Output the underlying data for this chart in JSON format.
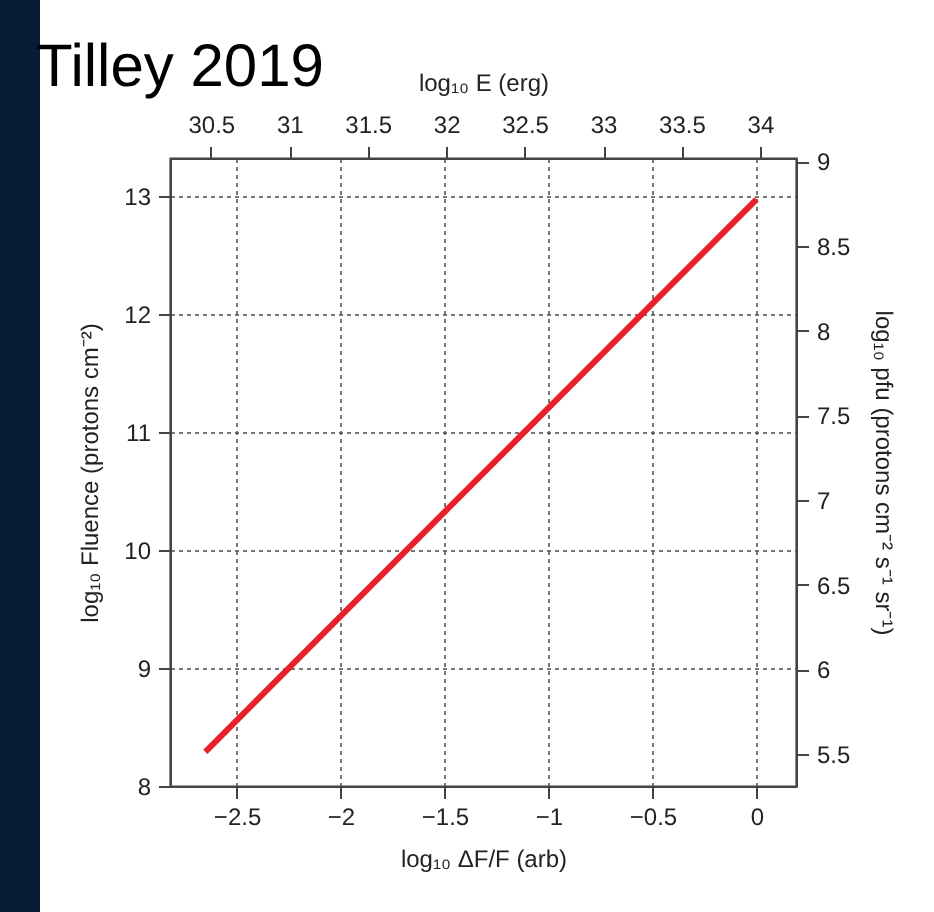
{
  "chart_data": {
    "type": "line",
    "title": "Tilley 2019",
    "xlabel": "log₁₀ ΔF/F (arb)",
    "ylabel": "log₁₀ Fluence (protons cm⁻²)",
    "y2label": "log₁₀ pfu (protons cm⁻² s⁻¹ sr⁻¹)",
    "x2label": "log₁₀ E (erg)",
    "x": [
      -2.65,
      0
    ],
    "series": [
      {
        "color": "#e8202a",
        "values": [
          8.29,
          12.97
        ]
      }
    ],
    "xlim": [
      -2.82,
      0.19
    ],
    "xticks": [
      {
        "value": -2.5,
        "label": "−2.5"
      },
      {
        "value": -2,
        "label": "−2"
      },
      {
        "value": -1.5,
        "label": "−1.5"
      },
      {
        "value": -1,
        "label": "−1"
      },
      {
        "value": -0.5,
        "label": "−0.5"
      },
      0
    ],
    "ylim": [
      8,
      13.32
    ],
    "yticks": [
      8,
      9,
      10,
      11,
      12,
      13
    ],
    "x2lim": [
      30.24,
      34.23
    ],
    "x2ticks": [
      30.5,
      31,
      31.5,
      32,
      32.5,
      33,
      33.5,
      34
    ],
    "y2lim": [
      5.31,
      9.02
    ],
    "y2ticks": [
      5.5,
      6,
      6.5,
      7,
      7.5,
      8,
      8.5,
      9
    ],
    "grid": true,
    "line_style": "solid",
    "marker": "none"
  }
}
